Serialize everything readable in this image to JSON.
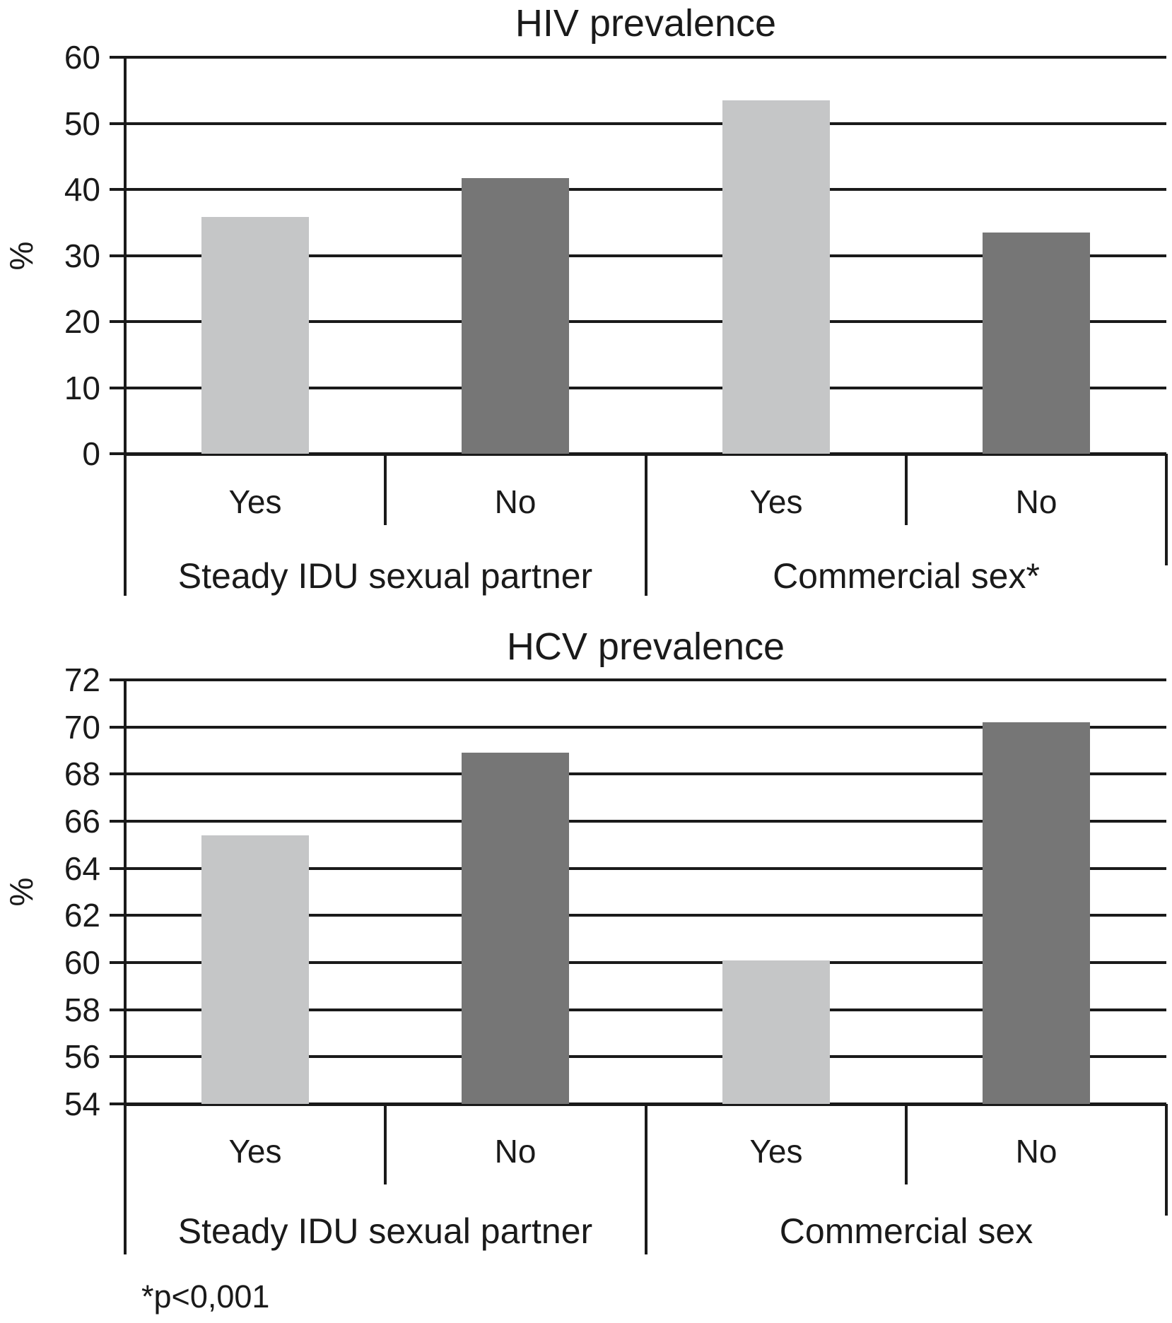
{
  "figure": {
    "footnote": "*p<0,001"
  },
  "colors": {
    "bar_light": "#c5c6c7",
    "bar_dark": "#767676",
    "line": "#1a1a1a",
    "background": "#ffffff"
  },
  "chart_data": [
    {
      "type": "bar",
      "title": "HIV prevalence",
      "ylabel": "%",
      "ylim": [
        0,
        60
      ],
      "ytick_step": 10,
      "yticks": [
        60,
        50,
        40,
        30,
        20,
        10,
        0
      ],
      "grid": true,
      "legend": null,
      "bar_color_pattern": [
        "light",
        "dark"
      ],
      "groups": [
        {
          "label": "Steady IDU sexual partner",
          "categories": [
            "Yes",
            "No"
          ],
          "values": [
            35.8,
            41.7
          ]
        },
        {
          "label": "Commercial sex*",
          "categories": [
            "Yes",
            "No"
          ],
          "values": [
            53.5,
            33.5
          ]
        }
      ]
    },
    {
      "type": "bar",
      "title": "HCV prevalence",
      "ylabel": "%",
      "ylim": [
        54,
        72
      ],
      "ytick_step": 2,
      "yticks": [
        72,
        70,
        68,
        66,
        64,
        62,
        60,
        58,
        56,
        54
      ],
      "grid": true,
      "legend": null,
      "bar_color_pattern": [
        "light",
        "dark"
      ],
      "groups": [
        {
          "label": "Steady IDU sexual partner",
          "categories": [
            "Yes",
            "No"
          ],
          "values": [
            65.4,
            68.9
          ]
        },
        {
          "label": "Commercial sex",
          "categories": [
            "Yes",
            "No"
          ],
          "values": [
            60.1,
            70.2
          ]
        }
      ]
    }
  ]
}
